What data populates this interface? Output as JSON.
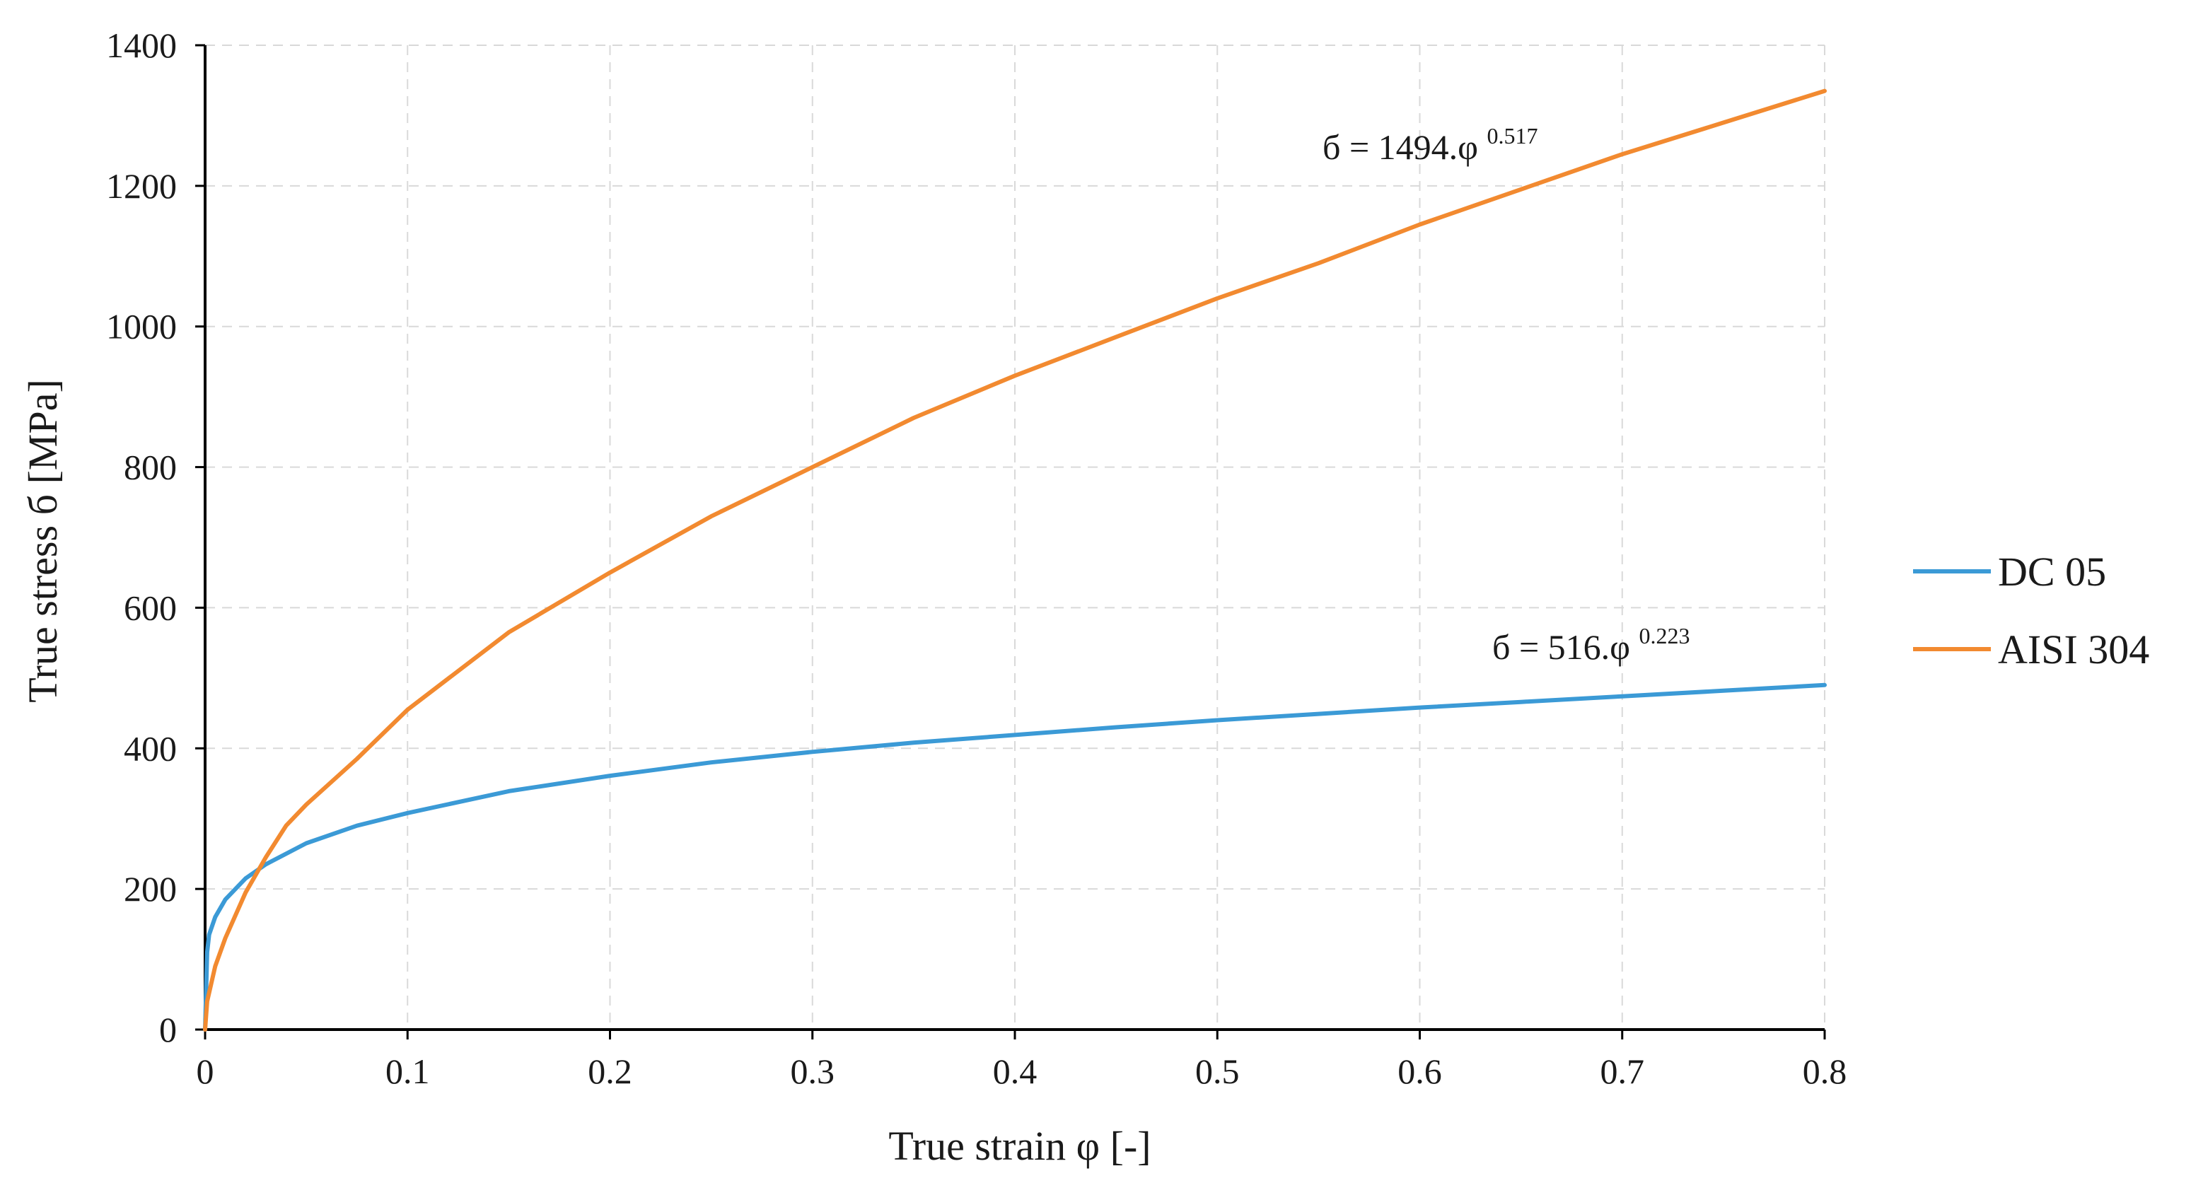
{
  "chart_data": {
    "type": "line",
    "title": "",
    "xlabel": "True strain φ [-]",
    "ylabel": "True stress  б [MPa]",
    "xlim": [
      0,
      0.8
    ],
    "ylim": [
      0,
      1400
    ],
    "x_ticks": [
      0,
      0.1,
      0.2,
      0.3,
      0.4,
      0.5,
      0.6,
      0.7,
      0.8
    ],
    "x_tick_labels": [
      "0",
      "0.1",
      "0.2",
      "0.3",
      "0.4",
      "0.5",
      "0.6",
      "0.7",
      "0.8"
    ],
    "y_ticks": [
      0,
      200,
      400,
      600,
      800,
      1000,
      1200,
      1400
    ],
    "y_tick_labels": [
      "0",
      "200",
      "400",
      "600",
      "800",
      "1000",
      "1200",
      "1400"
    ],
    "grid": true,
    "legend_position": "right",
    "series": [
      {
        "name": "DC 05",
        "color": "#3b9ad6",
        "equation_base": "б = 516.φ",
        "equation_exp": "0.223",
        "x": [
          0,
          0.001,
          0.002,
          0.005,
          0.01,
          0.02,
          0.03,
          0.05,
          0.075,
          0.1,
          0.15,
          0.2,
          0.25,
          0.3,
          0.35,
          0.4,
          0.45,
          0.5,
          0.55,
          0.6,
          0.65,
          0.7,
          0.75,
          0.8
        ],
        "y": [
          0,
          110,
          135,
          160,
          185,
          215,
          235,
          265,
          290,
          308,
          339,
          361,
          380,
          395,
          408,
          419,
          430,
          440,
          449,
          458,
          466,
          474,
          482,
          490
        ]
      },
      {
        "name": "AISI 304",
        "color": "#f28a30",
        "equation_base": "б = 1494.φ",
        "equation_exp": "0.517",
        "x": [
          0,
          0.001,
          0.005,
          0.01,
          0.02,
          0.03,
          0.04,
          0.05,
          0.075,
          0.1,
          0.15,
          0.2,
          0.25,
          0.3,
          0.35,
          0.4,
          0.45,
          0.5,
          0.55,
          0.6,
          0.65,
          0.7,
          0.75,
          0.8
        ],
        "y": [
          0,
          40,
          90,
          130,
          195,
          245,
          290,
          320,
          385,
          455,
          565,
          650,
          730,
          800,
          870,
          930,
          985,
          1040,
          1090,
          1145,
          1195,
          1245,
          1290,
          1335
        ]
      }
    ]
  }
}
